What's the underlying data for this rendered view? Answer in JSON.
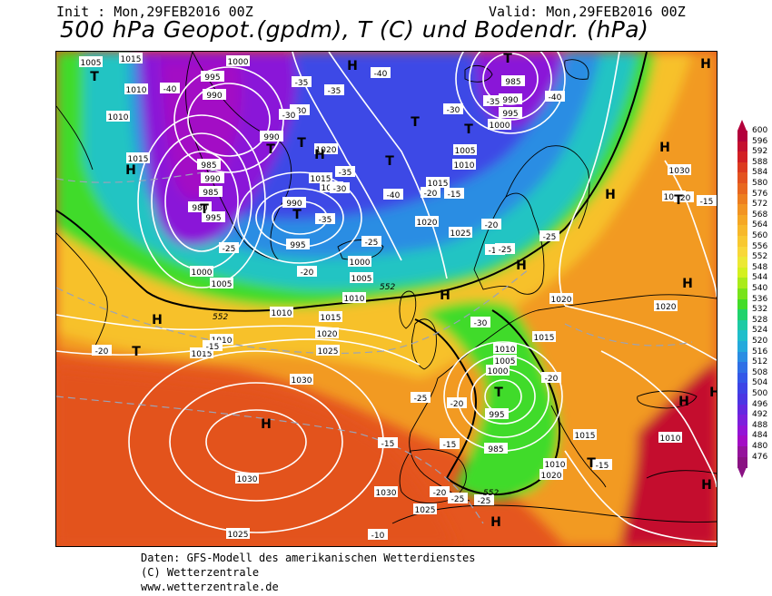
{
  "header": {
    "init": "Init : Mon,29FEB2016 00Z",
    "valid": "Valid: Mon,29FEB2016 00Z",
    "title": "500 hPa Geopot.(gpdm), T (C) und Bodendr. (hPa)"
  },
  "footer": {
    "line1": "Daten: GFS-Modell des amerikanischen Wetterdienstes",
    "line2": "(C) Wetterzentrale",
    "line3": "www.wetterzentrale.de"
  },
  "legend": {
    "values": [
      "600",
      "596",
      "592",
      "588",
      "584",
      "580",
      "576",
      "572",
      "568",
      "564",
      "560",
      "556",
      "552",
      "548",
      "544",
      "540",
      "536",
      "532",
      "528",
      "524",
      "520",
      "516",
      "512",
      "508",
      "504",
      "500",
      "496",
      "492",
      "488",
      "484",
      "480",
      "476"
    ],
    "colors": [
      "#b3003b",
      "#c4102f",
      "#d21f24",
      "#dc3a1f",
      "#e3521f",
      "#e8671f",
      "#ed7e1f",
      "#f29422",
      "#f5a724",
      "#f7b82a",
      "#f8c830",
      "#f8d739",
      "#ece834",
      "#d4f01f",
      "#a9eb1a",
      "#78e31a",
      "#43dc28",
      "#1fd36d",
      "#1dcaa4",
      "#1fbecb",
      "#24a9dc",
      "#2a8de3",
      "#2f70e6",
      "#3358e8",
      "#3d44e6",
      "#4b36e3",
      "#6428e0",
      "#7c1fdc",
      "#9314d6",
      "#a30cc5",
      "#95139c",
      "#8a1283"
    ]
  },
  "map": {
    "pressure_labels": [
      "1005",
      "1015",
      "1010",
      "1010",
      "1015",
      "995",
      "990",
      "1000",
      "990",
      "1020",
      "1015",
      "1010",
      "995",
      "990",
      "985",
      "980",
      "990",
      "985",
      "995",
      "1000",
      "1005",
      "1010",
      "1000",
      "1005",
      "1010",
      "1015",
      "1010",
      "1015",
      "1020",
      "1025",
      "1030",
      "1030",
      "1025",
      "985",
      "990",
      "995",
      "1000",
      "1005",
      "1010",
      "1015",
      "1020",
      "1025",
      "1020",
      "1015",
      "1010",
      "1005",
      "1000",
      "995",
      "985",
      "1010",
      "1015",
      "1020",
      "1030",
      "1025",
      "1020",
      "1010",
      "1020",
      "1030"
    ],
    "temp_labels": [
      "-40",
      "-35",
      "-30",
      "-40",
      "-35",
      "-30",
      "-35",
      "-40",
      "-30",
      "-35",
      "-25",
      "-20",
      "-25",
      "-40",
      "-35",
      "-30",
      "-25",
      "-20",
      "-15",
      "-15",
      "-20",
      "-25",
      "-30",
      "-25",
      "-20",
      "-15",
      "-15",
      "-20",
      "-25",
      "-10",
      "-25",
      "-20",
      "-15",
      "-20",
      "-15",
      "-20",
      "-15"
    ],
    "geopot_labels": [
      "552",
      "552",
      "552"
    ],
    "high_symbol": "H",
    "low_symbol": "T"
  }
}
